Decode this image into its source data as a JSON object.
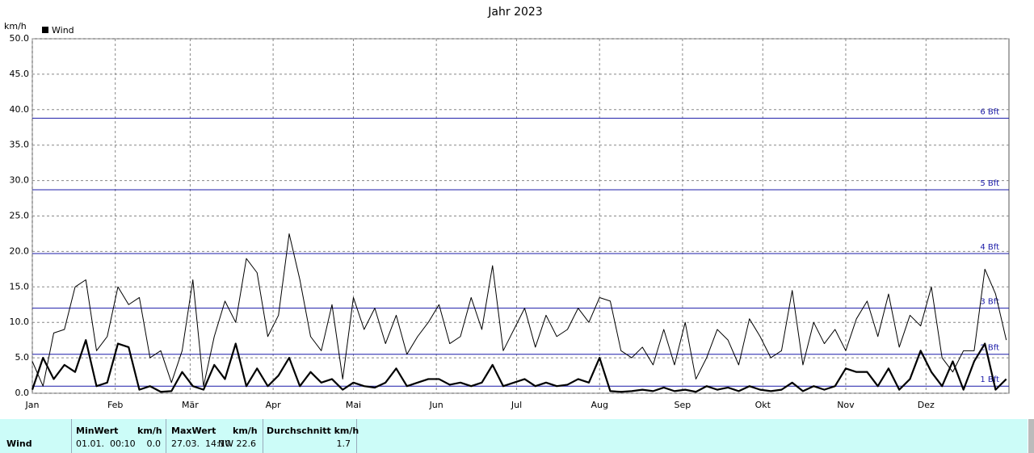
{
  "chart_data": {
    "type": "line",
    "title": "Jahr 2023",
    "y_unit": "km/h",
    "x": [
      0,
      4,
      8,
      12,
      16,
      20,
      24,
      28,
      32,
      36,
      40,
      44,
      48,
      52,
      56,
      60,
      64,
      68,
      72,
      76,
      80,
      84,
      88,
      92,
      96,
      100,
      104,
      108,
      112,
      116,
      120,
      124,
      128,
      132,
      136,
      140,
      144,
      148,
      152,
      156,
      160,
      164,
      168,
      172,
      176,
      180,
      184,
      188,
      192,
      196,
      200,
      204,
      208,
      212,
      216,
      220,
      224,
      228,
      232,
      236,
      240,
      244,
      248,
      252,
      256,
      260,
      264,
      268,
      272,
      276,
      280,
      284,
      288,
      292,
      296,
      300,
      304,
      308,
      312,
      316,
      320,
      324,
      328,
      332,
      336,
      340,
      344,
      348,
      352,
      356,
      360,
      364
    ],
    "xlim": [
      0,
      365
    ],
    "xticks": [
      {
        "value": 0,
        "label": "Jan"
      },
      {
        "value": 31,
        "label": "Feb"
      },
      {
        "value": 59,
        "label": "Mär"
      },
      {
        "value": 90,
        "label": "Apr"
      },
      {
        "value": 120,
        "label": "Mai"
      },
      {
        "value": 151,
        "label": "Jun"
      },
      {
        "value": 181,
        "label": "Jul"
      },
      {
        "value": 212,
        "label": "Aug"
      },
      {
        "value": 243,
        "label": "Sep"
      },
      {
        "value": 273,
        "label": "Okt"
      },
      {
        "value": 304,
        "label": "Nov"
      },
      {
        "value": 334,
        "label": "Dez"
      }
    ],
    "ylim": [
      0,
      50
    ],
    "yticks": [
      {
        "value": 0,
        "label": "0.0"
      },
      {
        "value": 5,
        "label": "5.0"
      },
      {
        "value": 10,
        "label": "10.0"
      },
      {
        "value": 15,
        "label": "15.0"
      },
      {
        "value": 20,
        "label": "20.0"
      },
      {
        "value": 25,
        "label": "25.0"
      },
      {
        "value": 30,
        "label": "30.0"
      },
      {
        "value": 35,
        "label": "35.0"
      },
      {
        "value": 40,
        "label": "40.0"
      },
      {
        "value": 45,
        "label": "45.0"
      },
      {
        "value": 50,
        "label": "50.0"
      }
    ],
    "grid": true,
    "ref_color": "#1c1ca8",
    "ref_lines": [
      {
        "value": 1,
        "label": "1 Bft"
      },
      {
        "value": 5.5,
        "label": "2 Bft"
      },
      {
        "value": 12,
        "label": "3 Bft"
      },
      {
        "value": 19.7,
        "label": "4 Bft"
      },
      {
        "value": 28.7,
        "label": "5 Bft"
      },
      {
        "value": 38.8,
        "label": "6 Bft"
      }
    ],
    "series": [
      {
        "color": "#000000",
        "width": 1,
        "values": [
          4.5,
          1,
          8.5,
          9,
          15,
          16,
          6,
          8,
          15,
          12.5,
          13.5,
          5,
          6,
          1.5,
          6,
          16,
          1,
          8,
          13,
          10,
          19,
          17,
          8,
          11,
          22.5,
          16,
          8,
          6,
          12.5,
          2,
          13.5,
          9,
          12,
          7,
          11,
          5.5,
          8,
          10,
          12.5,
          7,
          8,
          13.5,
          9,
          18,
          6,
          9,
          12,
          6.5,
          11,
          8,
          9,
          12,
          10,
          13.5,
          13,
          6,
          5,
          6.5,
          4,
          9,
          4,
          10,
          2,
          5,
          9,
          7.5,
          4,
          10.5,
          8,
          5,
          6,
          14.5,
          4,
          10,
          7,
          9,
          6,
          10.5,
          13,
          8,
          14,
          6.5,
          11,
          9.5,
          15,
          5,
          3,
          6,
          6,
          17.5,
          14,
          7.5
        ]
      },
      {
        "name": "Wind",
        "color": "#000000",
        "width": 2.2,
        "values": [
          0.5,
          5,
          2,
          4,
          3,
          7.5,
          1,
          1.5,
          7,
          6.5,
          0.5,
          1,
          0.2,
          0.3,
          3,
          1,
          0.5,
          4,
          2,
          7,
          1,
          3.5,
          1,
          2.5,
          5,
          1,
          3,
          1.5,
          2,
          0.5,
          1.5,
          1,
          0.8,
          1.5,
          3.5,
          1,
          1.5,
          2,
          2,
          1.2,
          1.5,
          1,
          1.5,
          4,
          1,
          1.5,
          2,
          1,
          1.5,
          1,
          1.2,
          2,
          1.5,
          5,
          0.3,
          0.2,
          0.3,
          0.5,
          0.3,
          0.8,
          0.3,
          0.5,
          0.2,
          1,
          0.5,
          0.8,
          0.3,
          1,
          0.5,
          0.3,
          0.5,
          1.5,
          0.3,
          1,
          0.5,
          1,
          3.5,
          3,
          3,
          1,
          3.5,
          0.5,
          2,
          6,
          3,
          1,
          4.5,
          0.5,
          4.5,
          7,
          0.5,
          2
        ]
      }
    ]
  },
  "table": {
    "header": [
      "MinWert",
      "km/h",
      "MaxWert",
      "km/h",
      "Durchschnitt km/h"
    ],
    "row": {
      "label": "Wind",
      "cells": [
        "01.01.  00:10",
        "0.0",
        "27.03.  14:10",
        "NW 22.6",
        "1.7"
      ]
    }
  }
}
